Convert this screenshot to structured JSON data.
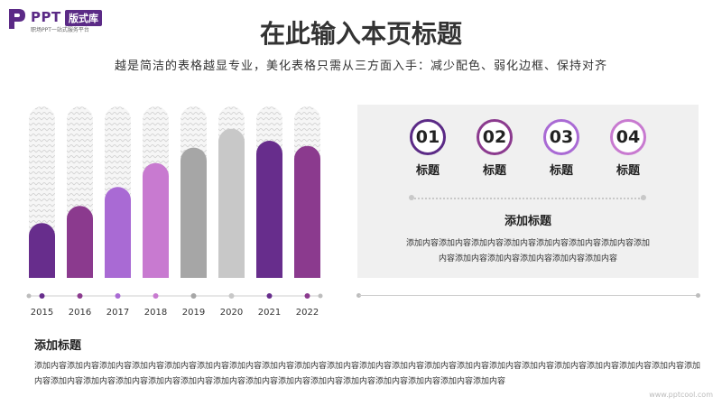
{
  "logo": {
    "brand": "PPT",
    "badge": "版式库",
    "tagline": "职场PPT一站式服务平台"
  },
  "title": "在此输入本页标题",
  "subtitle": "越是简洁的表格越显专业，美化表格只需从三方面入手：减少配色、弱化边框、保持对齐",
  "chart_data": {
    "type": "bar",
    "categories": [
      "2015",
      "2016",
      "2017",
      "2018",
      "2019",
      "2020",
      "2021",
      "2022"
    ],
    "values": [
      0.32,
      0.42,
      0.53,
      0.67,
      0.76,
      0.87,
      0.8,
      0.77
    ],
    "ylim": [
      0,
      1
    ],
    "bar_colors": [
      "#672d8c",
      "#8b3a8e",
      "#a96ad4",
      "#c87ad0",
      "#a6a6a6",
      "#c8c8c8",
      "#672d8c",
      "#8b3a8e"
    ],
    "dot_colors": [
      "#672d8c",
      "#8b3a8e",
      "#a96ad4",
      "#c87ad0",
      "#a6a6a6",
      "#c8c8c8",
      "#672d8c",
      "#8b3a8e"
    ],
    "grid": false
  },
  "steps": [
    {
      "number": "01",
      "label": "标题",
      "color": "#5b2a86"
    },
    {
      "number": "02",
      "label": "标题",
      "color": "#8b3a8e"
    },
    {
      "number": "03",
      "label": "标题",
      "color": "#a96ad4"
    },
    {
      "number": "04",
      "label": "标题",
      "color": "#c87ad0"
    }
  ],
  "panel": {
    "title": "添加标题",
    "body": "添加内容添加内容添加内容添加内容添加内容添加内容添加内容添加内容添加内容添加内容添加内容添加内容添加内容"
  },
  "section": {
    "title": "添加标题",
    "body": "添加内容添加内容添加内容添加内容添加内容添加内容添加内容添加内容添加内容添加内容添加内容添加内容添加内容添加内容添加内容添加内容添加内容添加内容添加内容添加内容添加内容添加内容添加内容添加内容添加内容添加内容添加内容添加内容添加内容添加内容添加内容添加内容添加内容添加内容添加内容"
  },
  "watermark": "www.pptcool.com"
}
